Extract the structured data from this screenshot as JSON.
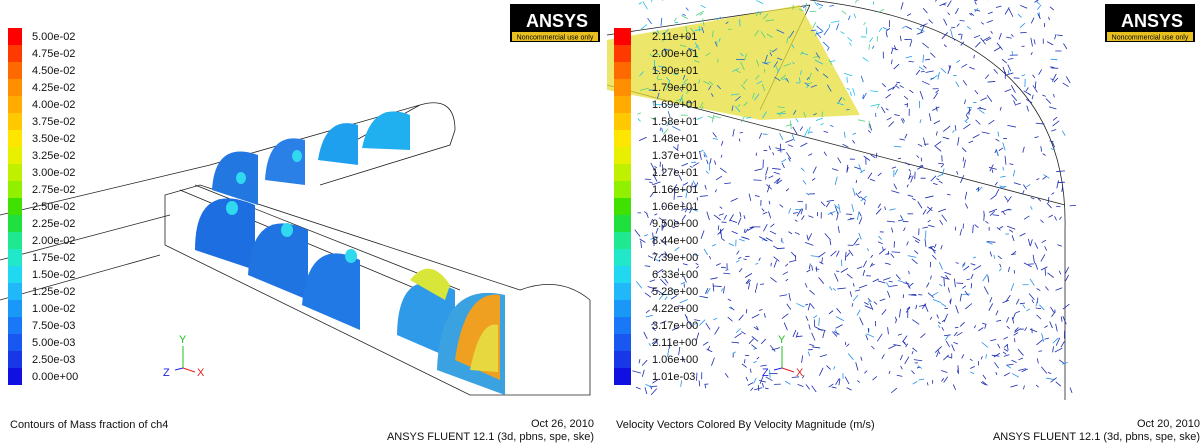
{
  "panels": [
    {
      "legend_labels": [
        "5.00e-02",
        "4.75e-02",
        "4.50e-02",
        "4.25e-02",
        "4.00e-02",
        "3.75e-02",
        "3.50e-02",
        "3.25e-02",
        "3.00e-02",
        "2.75e-02",
        "2.50e-02",
        "2.25e-02",
        "2.00e-02",
        "1.75e-02",
        "1.50e-02",
        "1.25e-02",
        "1.00e-02",
        "7.50e-03",
        "5.00e-03",
        "2.50e-03",
        "0.00e+00"
      ],
      "logo": "ANSYS",
      "logo_note": "Noncommercial use only",
      "axes": {
        "y": "Y",
        "z": "Z",
        "x": "X"
      },
      "caption": "Contours of Mass fraction of ch4",
      "date": "Oct 26, 2010",
      "footer": "ANSYS FLUENT 12.1 (3d, pbns, spe, ske)"
    },
    {
      "legend_labels": [
        "2.11e+01",
        "2.00e+01",
        "1.90e+01",
        "1.79e+01",
        "1.69e+01",
        "1.58e+01",
        "1.48e+01",
        "1.37e+01",
        "1.27e+01",
        "1.16e+01",
        "1.06e+01",
        "9.50e+00",
        "8.44e+00",
        "7.39e+00",
        "6.33e+00",
        "5.28e+00",
        "4.22e+00",
        "3.17e+00",
        "2.11e+00",
        "1.06e+00",
        "1.01e-03"
      ],
      "logo": "ANSYS",
      "logo_note": "Noncommercial use only",
      "axes": {
        "y": "Y",
        "z": "Z",
        "x": "X"
      },
      "caption": "Velocity Vectors Colored By Velocity Magnitude (m/s)",
      "date": "Oct 20, 2010",
      "footer": "ANSYS FLUENT 12.1 (3d, pbns, spe, ske)"
    }
  ]
}
